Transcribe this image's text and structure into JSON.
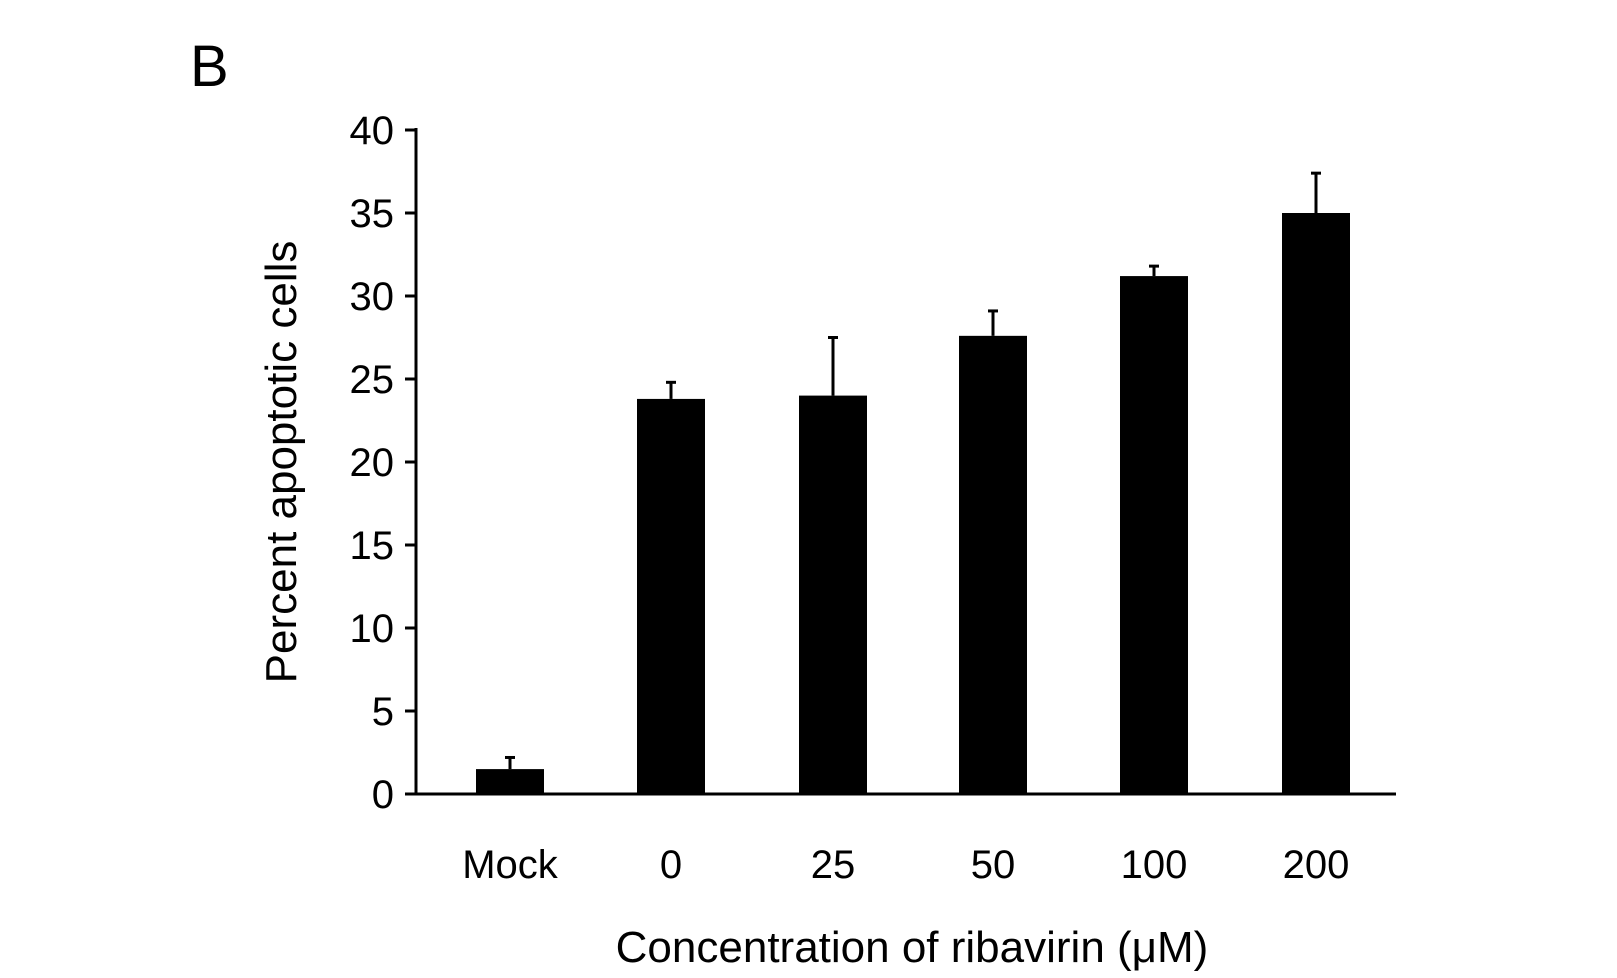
{
  "panel_label": "B",
  "chart_data": {
    "type": "bar",
    "categories": [
      "Mock",
      "0",
      "25",
      "50",
      "100",
      "200"
    ],
    "values": [
      1.5,
      23.8,
      24.0,
      27.6,
      31.2,
      35.0
    ],
    "error_upper": [
      2.2,
      24.8,
      27.5,
      29.1,
      31.8,
      37.4
    ],
    "xlabel": "Concentration of ribavirin (μM)",
    "ylabel": "Percent apoptotic cells",
    "ylim": [
      0,
      40
    ],
    "yticks": [
      0,
      5,
      10,
      15,
      20,
      25,
      30,
      35,
      40
    ],
    "grid": false,
    "bar_color": "#000000"
  }
}
